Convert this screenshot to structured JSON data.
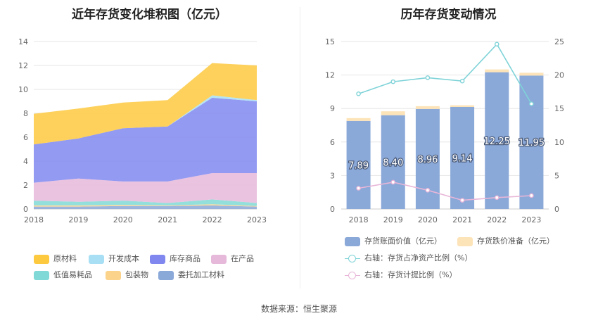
{
  "left": {
    "title": "近年存货变化堆积图（亿元）",
    "legend": [
      {
        "label": "原材料",
        "color": "#fdc93f"
      },
      {
        "label": "开发成本",
        "color": "#a8dff5"
      },
      {
        "label": "库存商品",
        "color": "#8088f0"
      },
      {
        "label": "在产品",
        "color": "#e6b9da"
      },
      {
        "label": "低值易耗品",
        "color": "#80d9d6"
      },
      {
        "label": "包装物",
        "color": "#fbd38b"
      },
      {
        "label": "委托加工材料",
        "color": "#8aa8d8"
      }
    ]
  },
  "right": {
    "title": "历年存货变动情况",
    "legend": [
      {
        "label": "存货账面价值（亿元）",
        "color": "#8aa8d8",
        "kind": "bar"
      },
      {
        "label": "存货跌价准备（亿元）",
        "color": "#fde3b8",
        "kind": "bar"
      },
      {
        "label": "右轴：存货占净资产比例（%）",
        "color": "#7fd3d8",
        "kind": "line"
      },
      {
        "label": "右轴：存货计提比例（%）",
        "color": "#e8b6d8",
        "kind": "line"
      }
    ]
  },
  "source": "数据来源：恒生聚源",
  "chart_data": [
    {
      "type": "area",
      "title": "近年存货变化堆积图（亿元）",
      "x": [
        "2018",
        "2019",
        "2020",
        "2021",
        "2022",
        "2023"
      ],
      "ylim": [
        0,
        14
      ],
      "yticks": [
        0,
        2,
        4,
        6,
        8,
        10,
        12,
        14
      ],
      "stacked": true,
      "grid": true,
      "legend_position": "bottom",
      "series": [
        {
          "name": "委托加工材料",
          "color": "#8aa8d8",
          "values": [
            0.2,
            0.2,
            0.25,
            0.25,
            0.3,
            0.2
          ]
        },
        {
          "name": "包装物",
          "color": "#fbd38b",
          "values": [
            0.1,
            0.1,
            0.1,
            0.05,
            0.1,
            0.05
          ]
        },
        {
          "name": "低值易耗品",
          "color": "#80d9d6",
          "values": [
            0.4,
            0.3,
            0.35,
            0.2,
            0.4,
            0.25
          ]
        },
        {
          "name": "在产品",
          "color": "#e6b9da",
          "values": [
            1.5,
            1.95,
            1.6,
            1.8,
            2.2,
            2.5
          ]
        },
        {
          "name": "库存商品",
          "color": "#8088f0",
          "values": [
            3.2,
            3.35,
            4.45,
            4.6,
            6.3,
            6.0
          ]
        },
        {
          "name": "开发成本",
          "color": "#a8dff5",
          "values": [
            0.0,
            0.0,
            0.0,
            0.0,
            0.2,
            0.1
          ]
        },
        {
          "name": "原材料",
          "color": "#fdc93f",
          "values": [
            2.55,
            2.5,
            2.15,
            2.2,
            2.7,
            2.9
          ]
        }
      ]
    },
    {
      "type": "bar",
      "title": "历年存货变动情况",
      "categories": [
        "2018",
        "2019",
        "2020",
        "2021",
        "2022",
        "2023"
      ],
      "ylim_left": [
        0,
        15
      ],
      "yticks_left": [
        0,
        3,
        6,
        9,
        12,
        15
      ],
      "ylim_right": [
        0,
        25
      ],
      "yticks_right": [
        0,
        5,
        10,
        15,
        20,
        25
      ],
      "grid": true,
      "legend_position": "bottom",
      "series": [
        {
          "name": "存货账面价值（亿元）",
          "kind": "bar",
          "stacked": true,
          "axis": "left",
          "color": "#8aa8d8",
          "values": [
            7.89,
            8.4,
            8.96,
            9.14,
            12.25,
            11.95
          ],
          "labels": [
            "7.89",
            "8.40",
            "8.96",
            "9.14",
            "12.25",
            "11.95"
          ]
        },
        {
          "name": "存货跌价准备（亿元）",
          "kind": "bar",
          "stacked": true,
          "axis": "left",
          "color": "#fde3b8",
          "values": [
            0.25,
            0.35,
            0.25,
            0.15,
            0.25,
            0.25
          ]
        },
        {
          "name": "右轴：存货占净资产比例（%）",
          "kind": "line",
          "axis": "right",
          "color": "#7fd3d8",
          "values": [
            17.2,
            19.0,
            19.6,
            19.1,
            24.6,
            15.7
          ]
        },
        {
          "name": "右轴：存货计提比例（%）",
          "kind": "line",
          "axis": "right",
          "color": "#e8b6d8",
          "values": [
            3.1,
            4.0,
            2.8,
            1.3,
            1.7,
            2.0
          ]
        }
      ]
    }
  ]
}
